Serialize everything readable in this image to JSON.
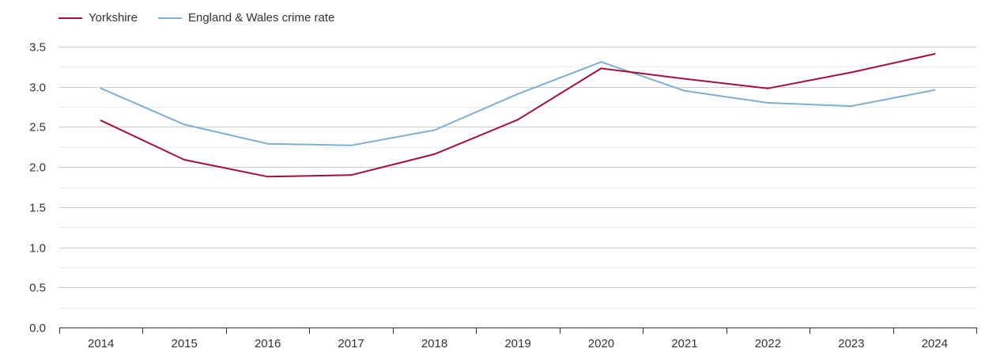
{
  "chart_data": {
    "type": "line",
    "title": "",
    "xlabel": "",
    "ylabel": "",
    "x": [
      "2014",
      "2015",
      "2016",
      "2017",
      "2018",
      "2019",
      "2020",
      "2021",
      "2022",
      "2023",
      "2024"
    ],
    "ylim": [
      0,
      3.5
    ],
    "yticks": [
      "0.0",
      "0.5",
      "1.0",
      "1.5",
      "2.0",
      "2.5",
      "3.0",
      "3.5"
    ],
    "grid": true,
    "legend_position": "top-left",
    "series": [
      {
        "name": "Yorkshire",
        "color": "#a50f3a",
        "values": [
          2.58,
          2.09,
          1.88,
          1.9,
          2.16,
          2.59,
          3.23,
          3.1,
          2.98,
          3.18,
          3.41
        ]
      },
      {
        "name": "England & Wales crime rate",
        "color": "#7ab0d4",
        "values": [
          2.98,
          2.53,
          2.29,
          2.27,
          2.46,
          2.91,
          3.31,
          2.95,
          2.8,
          2.76,
          2.96
        ]
      }
    ]
  }
}
